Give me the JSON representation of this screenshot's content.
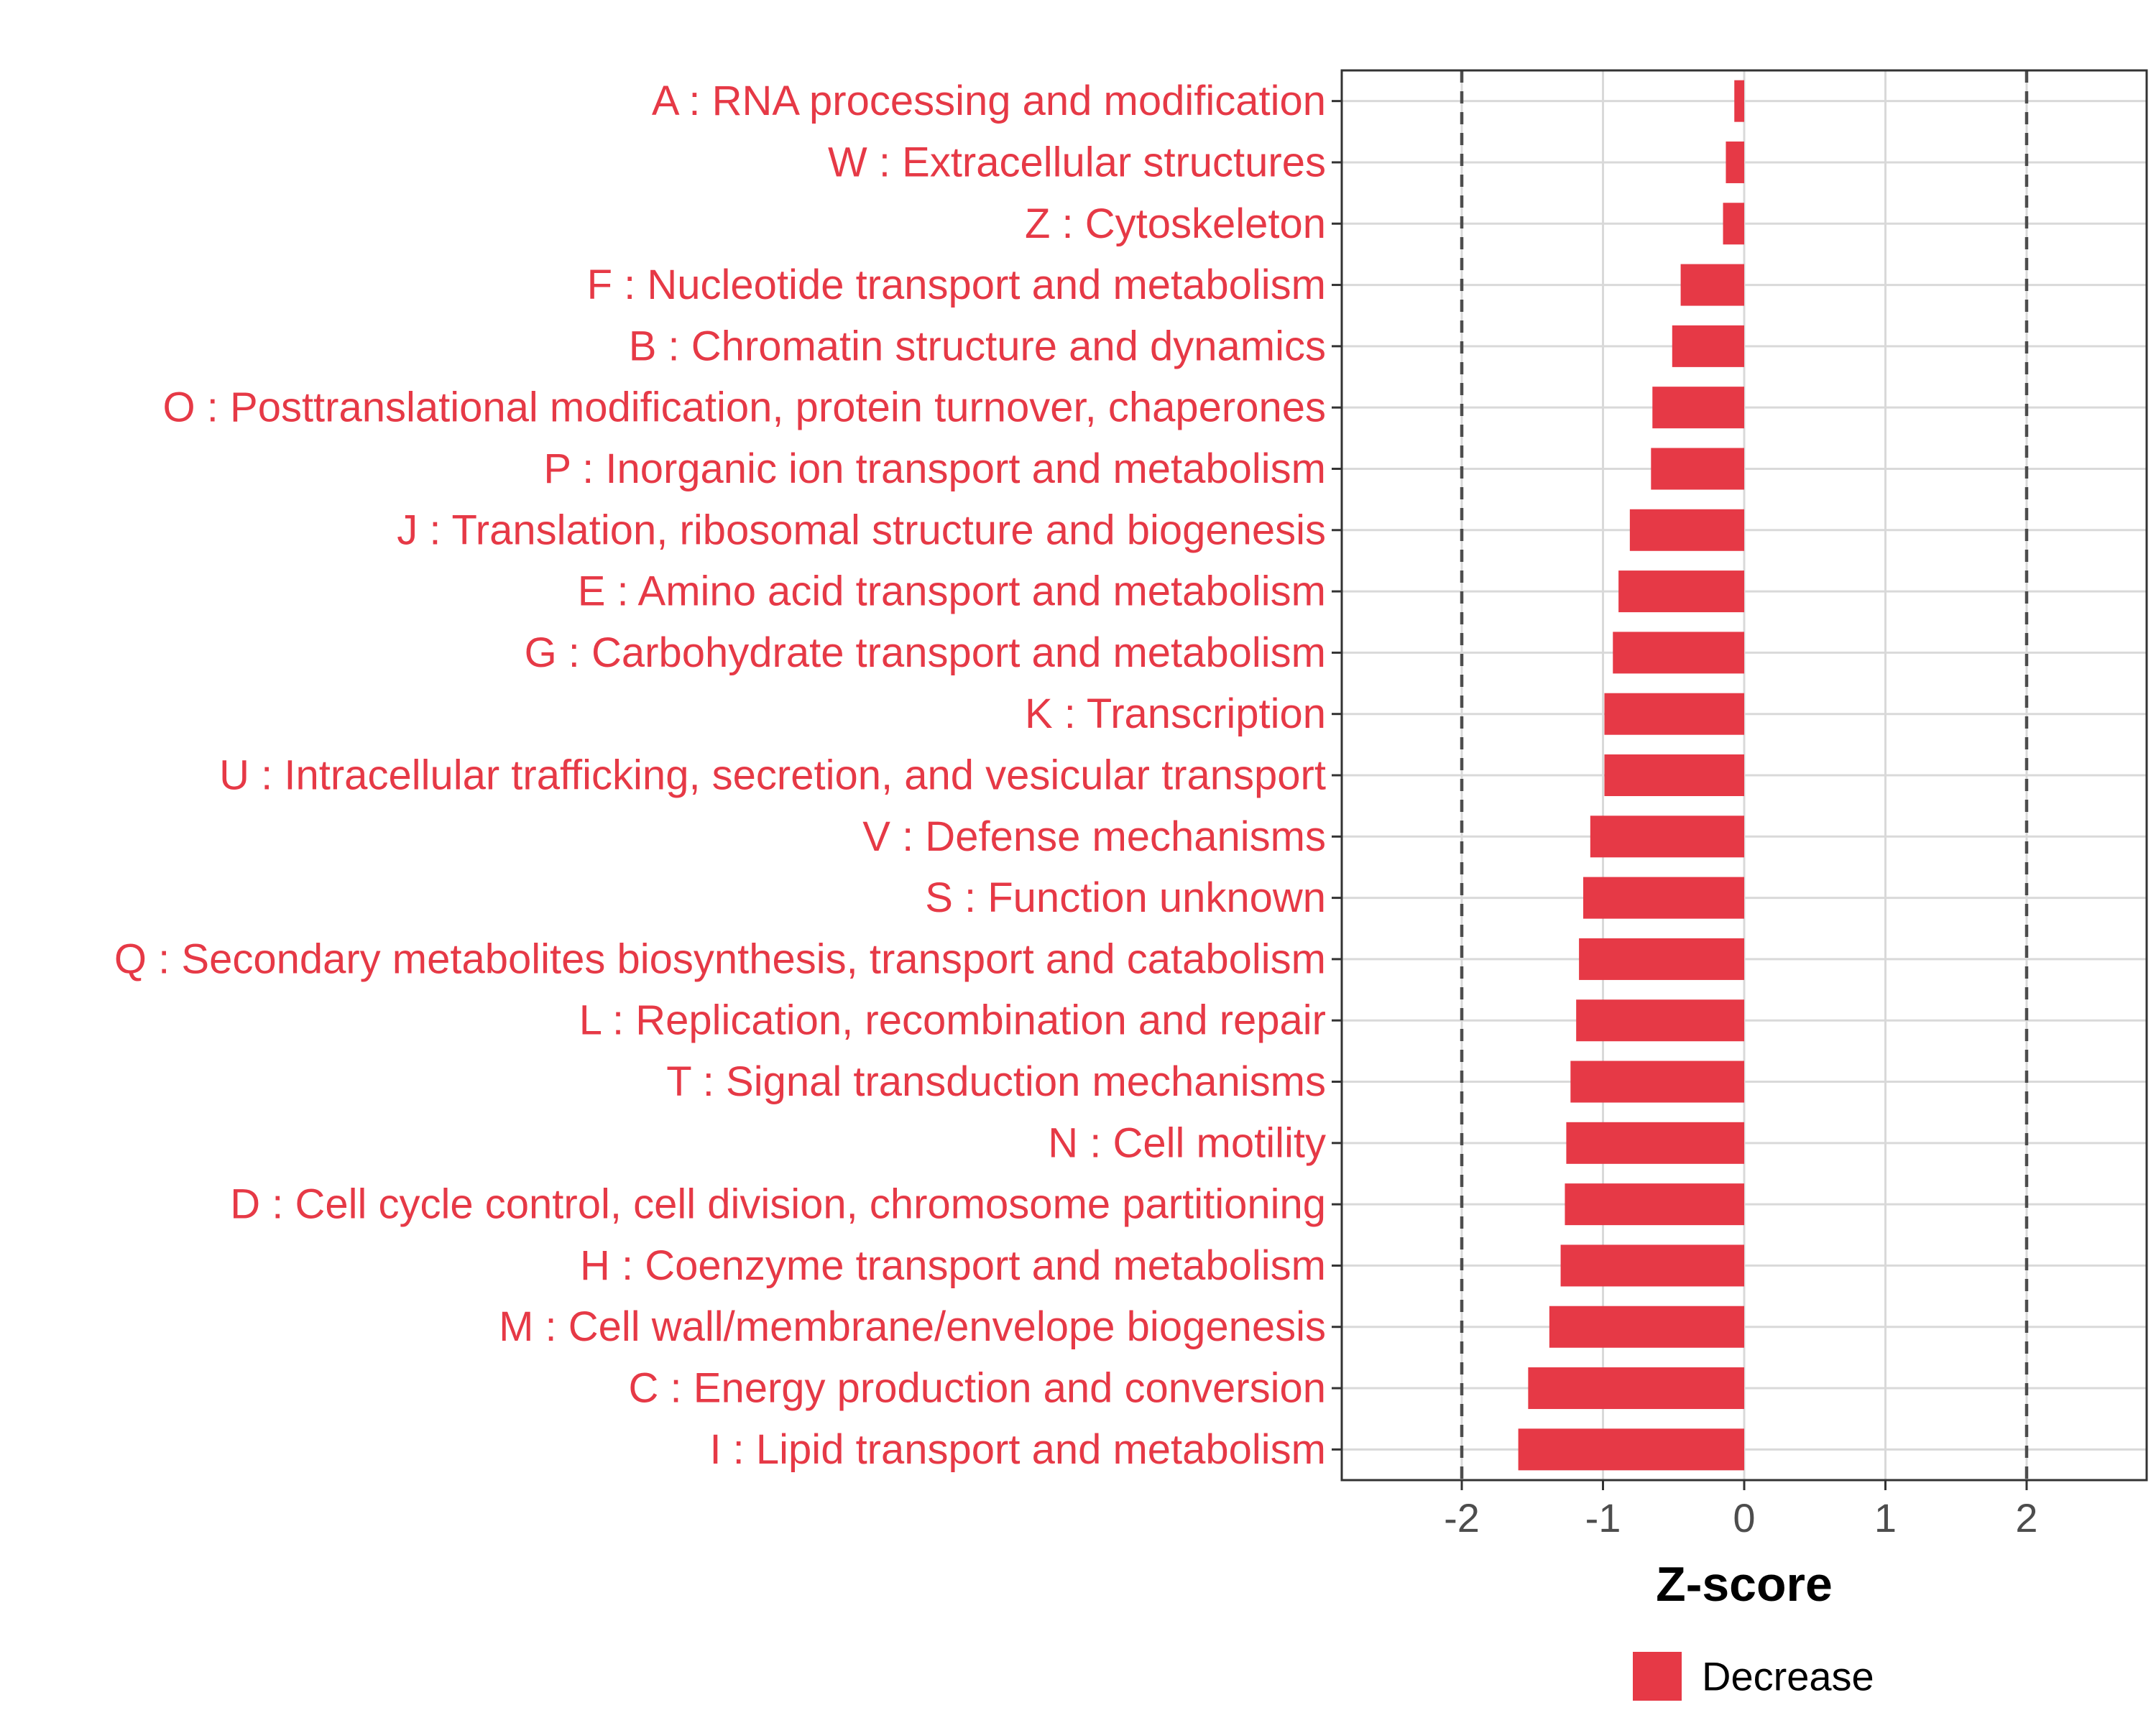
{
  "colors": {
    "bar": "#E63946",
    "label": "#E63946",
    "grid": "#D9D9D9",
    "tick_label": "#4D4D4D",
    "threshold": "#4D4D4D",
    "axis_title": "#000000",
    "panel_border": "#333333"
  },
  "chart_data": {
    "type": "bar",
    "orientation": "horizontal",
    "title": "",
    "xlabel": "Z-score",
    "ylabel": "",
    "xlim": [
      -2.85,
      2.85
    ],
    "xticks": [
      -2,
      -1,
      0,
      1,
      2
    ],
    "xtick_labels": [
      "-2",
      "-1",
      "0",
      "1",
      "2"
    ],
    "grid": true,
    "threshold_lines": [
      -2,
      2
    ],
    "legend": {
      "position": "bottom",
      "entries": [
        "Decrease"
      ]
    },
    "series": [
      {
        "name": "Decrease",
        "categories": [
          "A : RNA processing and modification",
          "W : Extracellular structures",
          "Z : Cytoskeleton",
          "F : Nucleotide transport and metabolism",
          "B : Chromatin structure and dynamics",
          "O : Posttranslational modification, protein turnover, chaperones",
          "P : Inorganic ion transport and metabolism",
          "J : Translation, ribosomal structure and biogenesis",
          "E : Amino acid transport and metabolism",
          "G : Carbohydrate transport and metabolism",
          "K : Transcription",
          "U : Intracellular trafficking, secretion, and vesicular transport",
          "V : Defense mechanisms",
          "S : Function unknown",
          "Q : Secondary metabolites biosynthesis, transport and catabolism",
          "L : Replication, recombination and repair",
          "T : Signal transduction mechanisms",
          "N : Cell motility",
          "D : Cell cycle control, cell division, chromosome partitioning",
          "H : Coenzyme transport and metabolism",
          "M : Cell wall/membrane/envelope biogenesis",
          "C : Energy production and conversion",
          "I : Lipid transport and metabolism"
        ],
        "values": [
          -0.07,
          -0.13,
          -0.15,
          -0.45,
          -0.51,
          -0.65,
          -0.66,
          -0.81,
          -0.89,
          -0.93,
          -0.99,
          -0.99,
          -1.09,
          -1.14,
          -1.17,
          -1.19,
          -1.23,
          -1.26,
          -1.27,
          -1.3,
          -1.38,
          -1.53,
          -1.6
        ]
      }
    ]
  }
}
